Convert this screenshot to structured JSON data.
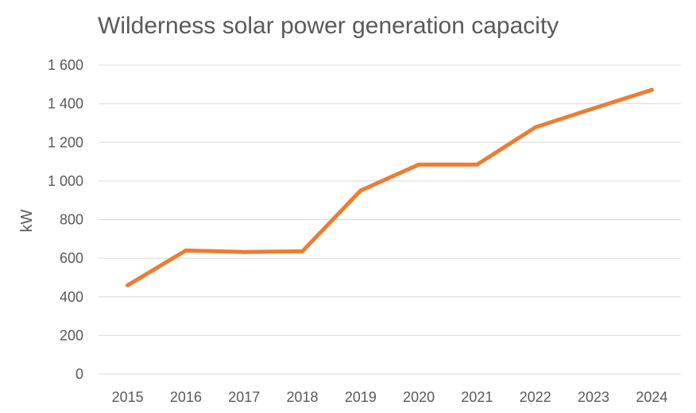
{
  "chart_data": {
    "type": "line",
    "title": "Wilderness solar power generation capacity",
    "xlabel": "",
    "ylabel": "kW",
    "categories": [
      "2015",
      "2016",
      "2017",
      "2018",
      "2019",
      "2020",
      "2021",
      "2022",
      "2023",
      "2024"
    ],
    "series": [
      {
        "values": [
          460,
          640,
          632,
          636,
          950,
          1085,
          1085,
          1278,
          1376,
          1472
        ]
      }
    ],
    "ylim": [
      0,
      1600
    ],
    "yticks": [
      "0",
      "200",
      "400",
      "600",
      "800",
      "1 000",
      "1 200",
      "1 400",
      "1 600"
    ],
    "grid": true,
    "legend": "none",
    "line_color": "#ed7d31"
  }
}
